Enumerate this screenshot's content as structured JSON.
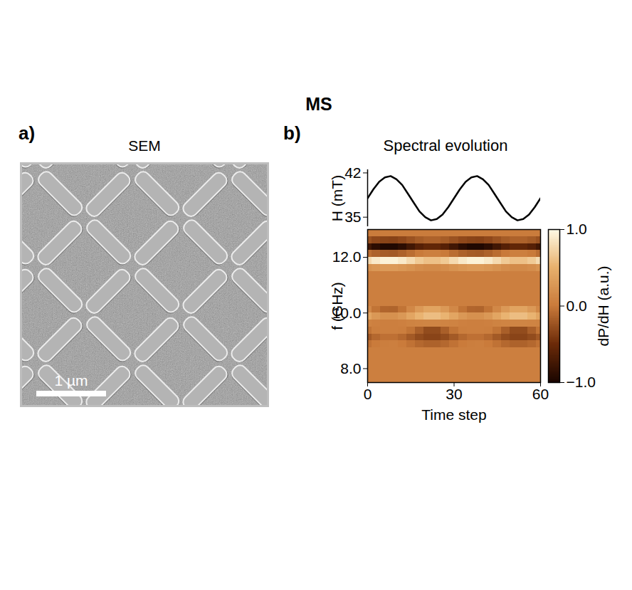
{
  "title": "MS",
  "image_panel": {
    "letter": "a)",
    "title": "SEM",
    "scale_bar": "1 µm"
  },
  "chart_data": [
    {
      "type": "line",
      "letter": "b)",
      "title": "Spectral evolution",
      "y_label": "H (mT)",
      "tick_labels": "y",
      "color": "#000000",
      "xlim": [
        0,
        60
      ],
      "ylim": [
        33.5,
        42.5
      ],
      "yticks": [
        35,
        42
      ],
      "x": [
        0,
        2,
        4,
        6,
        8,
        10,
        12,
        14,
        16,
        18,
        20,
        22,
        24,
        26,
        28,
        30,
        32,
        34,
        36,
        38,
        40,
        42,
        44,
        46,
        48,
        50,
        52,
        54,
        56,
        58,
        60
      ],
      "values": [
        38.0,
        39.4,
        40.6,
        41.3,
        41.5,
        41.0,
        40.1,
        38.7,
        37.3,
        35.9,
        35.0,
        34.5,
        34.7,
        35.4,
        36.6,
        38.0,
        39.4,
        40.6,
        41.3,
        41.5,
        41.0,
        40.1,
        38.7,
        37.3,
        35.9,
        35.0,
        34.5,
        34.7,
        35.4,
        36.6,
        38.0
      ]
    },
    {
      "type": "heatmap",
      "x_label": "Time step",
      "y_label": "f (GHz)",
      "xlim": [
        0,
        60
      ],
      "xticks": [
        0,
        30,
        60
      ],
      "ylim": [
        7.5,
        13
      ],
      "yticks": [
        8,
        10,
        12
      ],
      "cells": {
        "x": [
          0,
          3,
          6,
          9,
          12,
          15,
          18,
          21,
          24,
          27,
          30,
          33,
          36,
          39,
          42,
          45,
          48,
          51,
          54,
          57,
          60
        ],
        "y": [
          7.625,
          7.875,
          8.125,
          8.375,
          8.625,
          8.875,
          9.125,
          9.375,
          9.625,
          9.875,
          10.125,
          10.375,
          10.625,
          10.875,
          11.125,
          11.375,
          11.625,
          11.875,
          12.125,
          12.375,
          12.625,
          12.875
        ],
        "z": [
          [
            0.05,
            0.05,
            0.05,
            0.05,
            0.05,
            0.05,
            0.05,
            0.05,
            0.05,
            0.05,
            0.05,
            0.05,
            0.05,
            0.05,
            0.05,
            0.05,
            0.05,
            0.05,
            0.05,
            0.05,
            0.05
          ],
          [
            0.05,
            0.05,
            0.05,
            0.05,
            0.05,
            0.05,
            0.05,
            0.05,
            0.05,
            0.05,
            0.05,
            0.05,
            0.05,
            0.05,
            0.05,
            0.05,
            0.05,
            0.05,
            0.05,
            0.05,
            0.05
          ],
          [
            0.05,
            0.05,
            0.05,
            0.05,
            0.05,
            0.05,
            0.05,
            0.05,
            0.05,
            0.05,
            0.05,
            0.05,
            0.05,
            0.05,
            0.05,
            0.05,
            0.05,
            0.05,
            0.05,
            0.05,
            0.05
          ],
          [
            0.05,
            0.05,
            0.05,
            0.05,
            0.05,
            0.05,
            0.05,
            0.05,
            0.05,
            0.05,
            0.05,
            0.05,
            0.05,
            0.05,
            0.05,
            0.05,
            0.05,
            0.05,
            0.05,
            0.05,
            0.05
          ],
          [
            0.05,
            0.05,
            0.05,
            0.05,
            0.05,
            0.05,
            0.05,
            0.05,
            0.05,
            0.05,
            0.05,
            0.05,
            0.05,
            0.05,
            0.05,
            0.05,
            0.05,
            0.05,
            0.05,
            0.05,
            0.05
          ],
          [
            -0.05,
            0.01,
            0.04,
            0.05,
            0.01,
            -0.05,
            -0.11,
            -0.15,
            -0.15,
            -0.11,
            -0.05,
            0.01,
            0.04,
            0.05,
            0.01,
            -0.05,
            -0.11,
            -0.15,
            -0.15,
            -0.11,
            -0.05
          ],
          [
            -0.2,
            -0.11,
            -0.06,
            -0.06,
            -0.11,
            -0.2,
            -0.29,
            -0.34,
            -0.34,
            -0.29,
            -0.2,
            -0.11,
            -0.06,
            -0.06,
            -0.11,
            -0.2,
            -0.29,
            -0.34,
            -0.34,
            -0.29,
            -0.2
          ],
          [
            -0.04,
            0.04,
            0.05,
            0.05,
            0.04,
            -0.04,
            -0.17,
            -0.29,
            -0.29,
            -0.17,
            -0.04,
            0.04,
            0.05,
            0.05,
            0.04,
            -0.04,
            -0.17,
            -0.29,
            -0.29,
            -0.17,
            -0.04
          ],
          [
            0.08,
            0.06,
            0.05,
            0.05,
            0.06,
            0.08,
            0.09,
            0.1,
            0.1,
            0.09,
            0.08,
            0.06,
            0.05,
            0.05,
            0.06,
            0.08,
            0.09,
            0.1,
            0.1,
            0.09,
            0.08
          ],
          [
            0.4,
            0.28,
            0.21,
            0.21,
            0.28,
            0.4,
            0.52,
            0.59,
            0.59,
            0.52,
            0.4,
            0.28,
            0.21,
            0.21,
            0.28,
            0.4,
            0.52,
            0.59,
            0.59,
            0.52,
            0.4
          ],
          [
            0.13,
            -0.04,
            -0.13,
            -0.14,
            -0.04,
            0.13,
            0.29,
            0.39,
            0.39,
            0.29,
            0.13,
            -0.04,
            -0.13,
            -0.14,
            -0.04,
            0.13,
            0.29,
            0.39,
            0.39,
            0.29,
            0.13
          ],
          [
            0.05,
            0.05,
            0.05,
            0.05,
            0.05,
            0.05,
            0.05,
            0.05,
            0.05,
            0.05,
            0.05,
            0.05,
            0.05,
            0.05,
            0.05,
            0.05,
            0.05,
            0.05,
            0.05,
            0.05,
            0.05
          ],
          [
            0.05,
            0.05,
            0.05,
            0.05,
            0.05,
            0.05,
            0.05,
            0.05,
            0.05,
            0.05,
            0.05,
            0.05,
            0.05,
            0.05,
            0.05,
            0.05,
            0.05,
            0.05,
            0.05,
            0.05,
            0.05
          ],
          [
            0.05,
            0.05,
            0.05,
            0.05,
            0.05,
            0.05,
            0.05,
            0.05,
            0.05,
            0.05,
            0.05,
            0.05,
            0.05,
            0.05,
            0.05,
            0.05,
            0.05,
            0.05,
            0.05,
            0.05,
            0.05
          ],
          [
            0.05,
            0.05,
            0.05,
            0.05,
            0.05,
            0.05,
            0.05,
            0.05,
            0.05,
            0.05,
            0.05,
            0.05,
            0.05,
            0.05,
            0.05,
            0.05,
            0.05,
            0.05,
            0.05,
            0.05,
            0.05
          ],
          [
            0.05,
            0.05,
            0.05,
            0.05,
            0.05,
            0.05,
            0.05,
            0.05,
            0.05,
            0.05,
            0.05,
            0.05,
            0.05,
            0.05,
            0.05,
            0.05,
            0.05,
            0.05,
            0.05,
            0.05,
            0.05
          ],
          [
            0.23,
            0.27,
            0.3,
            0.3,
            0.27,
            0.23,
            0.18,
            0.15,
            0.15,
            0.18,
            0.23,
            0.27,
            0.3,
            0.3,
            0.27,
            0.23,
            0.18,
            0.15,
            0.15,
            0.18,
            0.23
          ],
          [
            0.78,
            0.88,
            0.94,
            0.94,
            0.88,
            0.78,
            0.67,
            0.61,
            0.61,
            0.67,
            0.78,
            0.88,
            0.94,
            0.94,
            0.88,
            0.78,
            0.67,
            0.61,
            0.61,
            0.67,
            0.78
          ],
          [
            -0.08,
            -0.15,
            -0.19,
            -0.2,
            -0.15,
            -0.08,
            0,
            0.05,
            0.05,
            0,
            -0.08,
            -0.15,
            -0.19,
            -0.2,
            -0.15,
            -0.08,
            0,
            0.05,
            0.05,
            0,
            -0.08
          ],
          [
            -0.76,
            -0.89,
            -0.96,
            -0.96,
            -0.89,
            -0.76,
            -0.63,
            -0.56,
            -0.56,
            -0.63,
            -0.76,
            -0.89,
            -0.96,
            -0.96,
            -0.89,
            -0.76,
            -0.63,
            -0.56,
            -0.56,
            -0.63,
            -0.76
          ],
          [
            -0.25,
            -0.31,
            -0.34,
            -0.35,
            -0.31,
            -0.25,
            -0.19,
            -0.15,
            -0.15,
            -0.19,
            -0.25,
            -0.31,
            -0.34,
            -0.35,
            -0.31,
            -0.25,
            -0.19,
            -0.15,
            -0.15,
            -0.19,
            -0.25
          ],
          [
            0.02,
            0.02,
            0.02,
            0.02,
            0.02,
            0.02,
            0.02,
            0.02,
            0.02,
            0.02,
            0.02,
            0.02,
            0.02,
            0.02,
            0.02,
            0.02,
            0.02,
            0.02,
            0.02,
            0.02,
            0.02
          ]
        ]
      },
      "colorbar": {
        "label": "dP/dH (a.u.)",
        "range": [
          -1,
          1
        ],
        "ticks": [
          -1,
          0,
          1
        ]
      }
    }
  ]
}
